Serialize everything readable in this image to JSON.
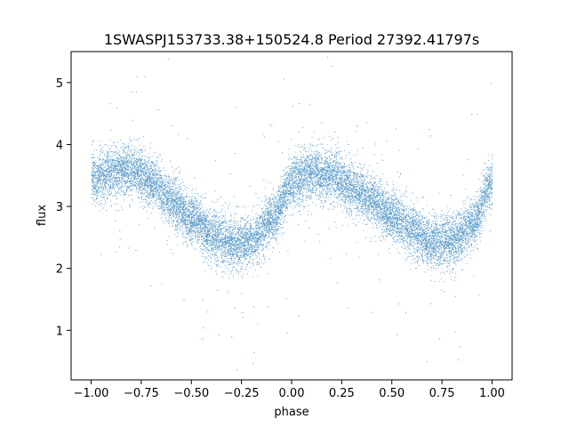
{
  "chart_data": {
    "type": "scatter",
    "title": "1SWASPJ153733.38+150524.8 Period 27392.41797s",
    "xlabel": "phase",
    "ylabel": "flux",
    "xlim": [
      -1.1,
      1.1
    ],
    "ylim": [
      0.2,
      5.5
    ],
    "xticks": [
      -1.0,
      -0.75,
      -0.5,
      -0.25,
      0.0,
      0.25,
      0.5,
      0.75,
      1.0
    ],
    "xtick_labels": [
      "−1.00",
      "−0.75",
      "−0.50",
      "−0.25",
      "0.00",
      "0.25",
      "0.50",
      "0.75",
      "1.00"
    ],
    "yticks": [
      1,
      2,
      3,
      4,
      5
    ],
    "ytick_labels": [
      "1",
      "2",
      "3",
      "4",
      "5"
    ],
    "grid": false,
    "point_color": "#1f77b4",
    "trend": {
      "description_points": [
        [
          -1.0,
          3.45
        ],
        [
          -0.9,
          3.55
        ],
        [
          -0.8,
          3.6
        ],
        [
          -0.7,
          3.4
        ],
        [
          -0.6,
          3.1
        ],
        [
          -0.5,
          2.8
        ],
        [
          -0.4,
          2.55
        ],
        [
          -0.3,
          2.4
        ],
        [
          -0.2,
          2.45
        ],
        [
          -0.1,
          2.8
        ],
        [
          0.0,
          3.4
        ],
        [
          0.1,
          3.55
        ],
        [
          0.2,
          3.5
        ],
        [
          0.3,
          3.3
        ],
        [
          0.4,
          3.1
        ],
        [
          0.5,
          2.85
        ],
        [
          0.6,
          2.6
        ],
        [
          0.7,
          2.4
        ],
        [
          0.8,
          2.45
        ],
        [
          0.9,
          2.7
        ],
        [
          1.0,
          3.4
        ]
      ],
      "scatter_sigma": 0.2,
      "n_points": 14000,
      "n_outliers": 260
    }
  }
}
